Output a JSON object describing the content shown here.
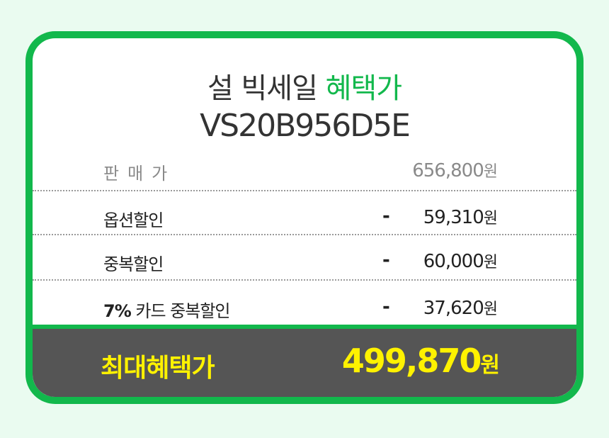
{
  "title": {
    "line1_prefix": "설 빅세일",
    "line1_accent": "혜택가",
    "model": "VS20B956D5E"
  },
  "rows": [
    {
      "label": "판매가",
      "minus": "",
      "amount": "656,800",
      "unit": "원"
    },
    {
      "label": "옵션할인",
      "minus": "-",
      "amount": "59,310",
      "unit": "원"
    },
    {
      "label": "중복할인",
      "minus": "-",
      "amount": "60,000",
      "unit": "원"
    },
    {
      "label_bold": "7%",
      "label_rest": "카드 중복할인",
      "minus": "-",
      "amount": "37,620",
      "unit": "원"
    }
  ],
  "total": {
    "label": "최대혜택가",
    "amount": "499,870",
    "unit": "원"
  },
  "colors": {
    "accent": "#12b84c",
    "highlight": "#fff200",
    "total_bg": "#555555",
    "page_bg": "#eafbf0"
  }
}
